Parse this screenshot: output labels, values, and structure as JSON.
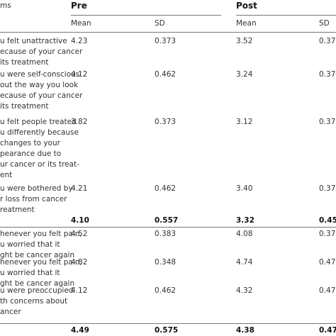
{
  "table": {
    "header": {
      "items": "ms",
      "pre": "Pre",
      "post": "Post"
    },
    "subheader": [
      "Mean",
      "SD",
      "Mean",
      "SD"
    ],
    "rows": [
      {
        "item": [
          "u felt unattractive",
          "ecause of your cancer",
          "its treatment"
        ],
        "cells": [
          "4.23",
          "0.373",
          "3.52",
          "0.37"
        ]
      },
      {
        "item": [
          "u were self-conscious",
          "out the way you look",
          "ecause of your cancer",
          "its treatment"
        ],
        "cells": [
          "4.12",
          "0.462",
          "3.24",
          "0.37"
        ]
      },
      {
        "item": [
          "u felt people treated",
          "u differently because",
          "changes to your",
          "pearance due to",
          "ur cancer or its treat-",
          "ent"
        ],
        "cells": [
          "3.82",
          "0.373",
          "3.12",
          "0.37"
        ]
      },
      {
        "item": [
          "u were bothered by",
          "r loss from cancer",
          "reatment"
        ],
        "cells": [
          "4.21",
          "0.462",
          "3.40",
          "0.37"
        ]
      },
      {
        "item": [],
        "cells": [
          "4.10",
          "0.557",
          "3.32",
          "0.45"
        ],
        "bold": true
      },
      {
        "item": [
          "henever you felt pain,",
          "u worried that it",
          "ght be cancer again"
        ],
        "cells": [
          "4.52",
          "0.383",
          "4.08",
          "0.37"
        ]
      },
      {
        "item": [
          "henever you felt pain,",
          "u worried that it",
          "ght be cancer again"
        ],
        "cells": [
          "4.82",
          "0.348",
          "4.74",
          "0.47"
        ]
      },
      {
        "item": [
          "u were preoccupied",
          "th concerns about",
          "ancer"
        ],
        "cells": [
          "4.12",
          "0.462",
          "4.32",
          "0.47"
        ]
      },
      {
        "item": [],
        "cells": [
          "4.49",
          "0.575",
          "4.38",
          "0.47"
        ],
        "bold": true
      }
    ]
  }
}
